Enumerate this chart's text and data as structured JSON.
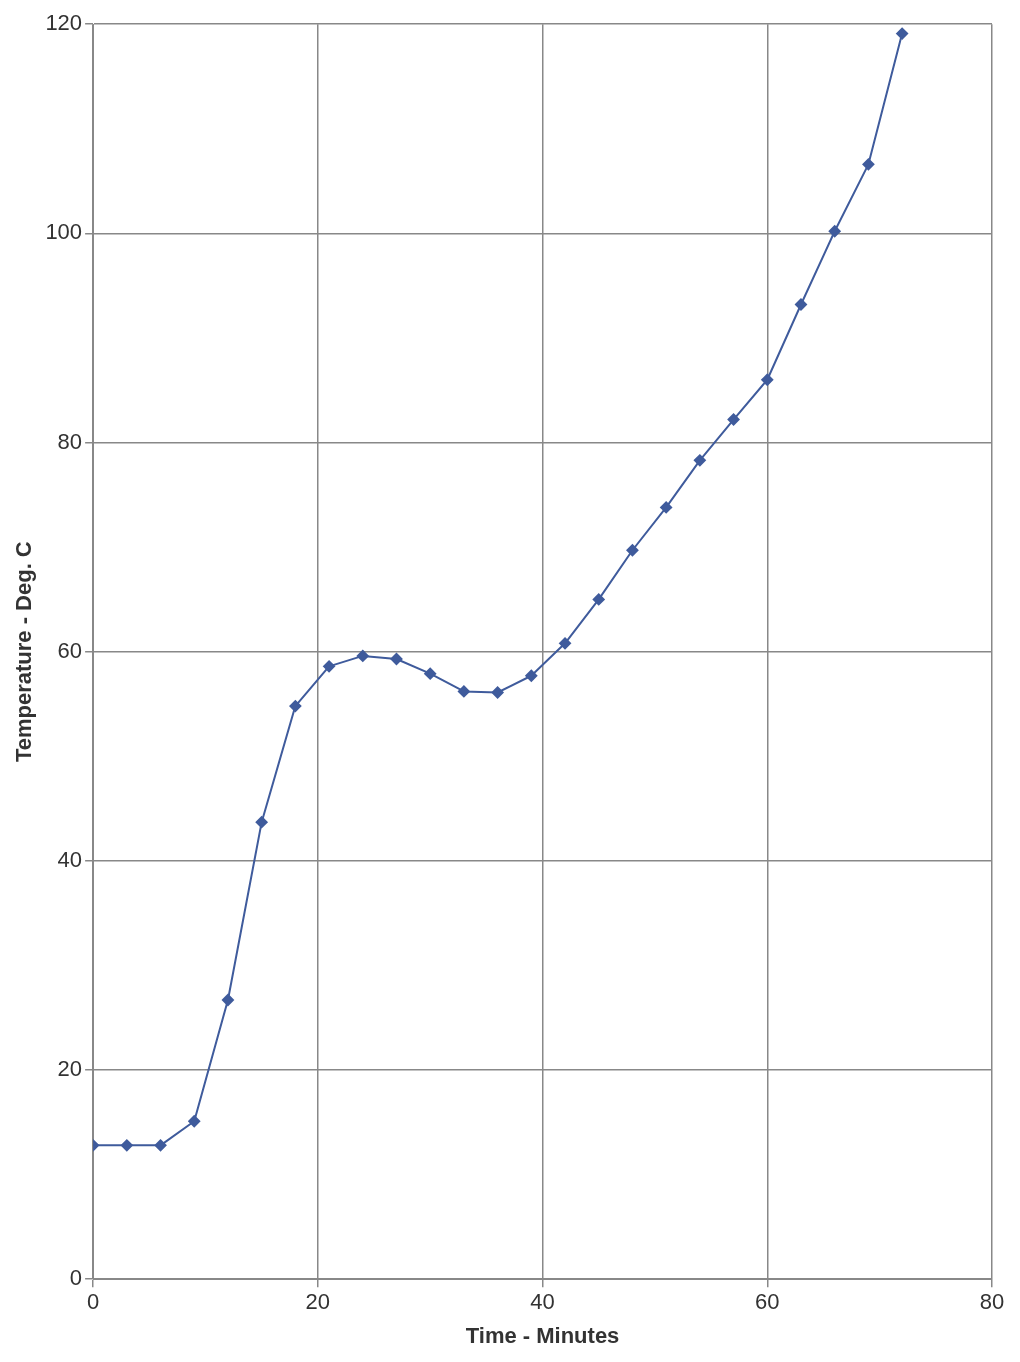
{
  "chart_data": {
    "type": "line",
    "xlabel": "Time - Minutes",
    "ylabel": "Temperature - Deg. C",
    "x": [
      0,
      3,
      6,
      9,
      12,
      15,
      18,
      21,
      24,
      27,
      30,
      33,
      36,
      39,
      42,
      45,
      48,
      51,
      54,
      57,
      60,
      63,
      66,
      69,
      72
    ],
    "series": [
      {
        "color": "#3f5b9c",
        "values": [
          12.8,
          12.8,
          12.8,
          15.1,
          26.7,
          43.7,
          54.8,
          58.6,
          59.6,
          59.3,
          57.9,
          56.2,
          56.1,
          57.7,
          60.8,
          65.0,
          69.7,
          73.8,
          78.3,
          82.2,
          86.0,
          93.2,
          100.2,
          106.6,
          119.1
        ]
      }
    ],
    "xlim": [
      0,
      80
    ],
    "xticks": [
      0,
      20,
      40,
      60,
      80
    ],
    "ylim": [
      0,
      120
    ],
    "yticks": [
      0,
      20,
      40,
      60,
      80,
      100,
      120
    ],
    "grid": true,
    "legend": false,
    "marker": "diamond",
    "line_style": "solid"
  }
}
